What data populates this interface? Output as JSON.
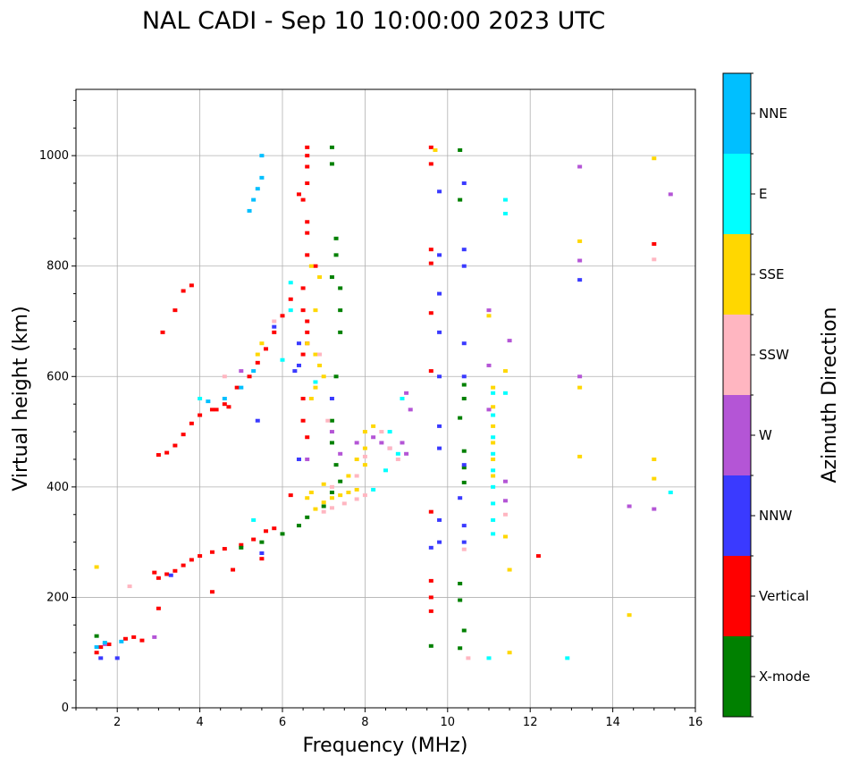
{
  "chart_data": {
    "type": "scatter",
    "title": "NAL CADI - Sep 10 10:00:00 2023 UTC",
    "xlabel": "Frequency (MHz)",
    "ylabel": "Virtual height (km)",
    "xlim": [
      1,
      16
    ],
    "ylim": [
      0,
      1120
    ],
    "xticks": [
      2,
      4,
      6,
      8,
      10,
      12,
      14,
      16
    ],
    "yticks": [
      0,
      200,
      400,
      600,
      800,
      1000
    ],
    "grid": true,
    "colorbar": {
      "title": "Azimuth Direction",
      "position": "right",
      "categories": [
        {
          "name": "X-mode",
          "color": "#008000"
        },
        {
          "name": "Vertical",
          "color": "#ff0000"
        },
        {
          "name": "NNW",
          "color": "#3a3aff"
        },
        {
          "name": "W",
          "color": "#b455d6"
        },
        {
          "name": "SSW",
          "color": "#ffb6c1"
        },
        {
          "name": "SSE",
          "color": "#ffd700"
        },
        {
          "name": "E",
          "color": "#00ffff"
        },
        {
          "name": "NNE",
          "color": "#00bfff"
        }
      ]
    },
    "series": [
      {
        "name": "Vertical",
        "points": [
          [
            1.5,
            100
          ],
          [
            1.6,
            110
          ],
          [
            1.8,
            115
          ],
          [
            2.2,
            125
          ],
          [
            2.4,
            128
          ],
          [
            2.6,
            122
          ],
          [
            2.9,
            245
          ],
          [
            3.0,
            235
          ],
          [
            3.2,
            242
          ],
          [
            3.4,
            248
          ],
          [
            3.6,
            258
          ],
          [
            3.8,
            268
          ],
          [
            4.0,
            275
          ],
          [
            4.3,
            282
          ],
          [
            4.6,
            288
          ],
          [
            5.0,
            295
          ],
          [
            5.3,
            305
          ],
          [
            5.6,
            320
          ],
          [
            5.8,
            325
          ],
          [
            6.2,
            385
          ],
          [
            3.0,
            458
          ],
          [
            3.2,
            462
          ],
          [
            3.4,
            475
          ],
          [
            3.6,
            495
          ],
          [
            3.8,
            515
          ],
          [
            4.0,
            530
          ],
          [
            4.3,
            540
          ],
          [
            4.6,
            550
          ],
          [
            4.9,
            580
          ],
          [
            5.2,
            600
          ],
          [
            5.4,
            625
          ],
          [
            5.6,
            650
          ],
          [
            5.8,
            680
          ],
          [
            6.0,
            710
          ],
          [
            6.2,
            740
          ],
          [
            6.5,
            720
          ],
          [
            6.6,
            700
          ],
          [
            6.6,
            680
          ],
          [
            6.6,
            660
          ],
          [
            6.5,
            640
          ],
          [
            6.6,
            880
          ],
          [
            6.6,
            860
          ],
          [
            6.5,
            920
          ],
          [
            6.6,
            950
          ],
          [
            6.4,
            930
          ],
          [
            6.6,
            980
          ],
          [
            6.6,
            1000
          ],
          [
            6.5,
            760
          ],
          [
            6.6,
            820
          ],
          [
            6.8,
            800
          ],
          [
            3.6,
            755
          ],
          [
            3.8,
            765
          ],
          [
            3.4,
            720
          ],
          [
            3.1,
            680
          ],
          [
            4.4,
            540
          ],
          [
            4.7,
            545
          ],
          [
            5.5,
            270
          ],
          [
            6.5,
            560
          ],
          [
            6.5,
            520
          ],
          [
            6.6,
            490
          ],
          [
            9.6,
            1015
          ],
          [
            9.6,
            985
          ],
          [
            12.2,
            275
          ],
          [
            15.0,
            840
          ],
          [
            3.0,
            180
          ],
          [
            4.3,
            210
          ],
          [
            4.8,
            250
          ],
          [
            6.6,
            1015
          ],
          [
            9.6,
            230
          ],
          [
            9.6,
            200
          ],
          [
            9.6,
            175
          ],
          [
            9.6,
            355
          ],
          [
            9.6,
            610
          ],
          [
            9.6,
            715
          ],
          [
            9.6,
            805
          ],
          [
            9.6,
            830
          ]
        ]
      },
      {
        "name": "X-mode",
        "points": [
          [
            1.5,
            130
          ],
          [
            5.0,
            290
          ],
          [
            5.5,
            300
          ],
          [
            6.0,
            315
          ],
          [
            6.4,
            330
          ],
          [
            6.6,
            345
          ],
          [
            7.0,
            365
          ],
          [
            7.2,
            390
          ],
          [
            7.3,
            850
          ],
          [
            7.3,
            820
          ],
          [
            7.4,
            760
          ],
          [
            7.4,
            720
          ],
          [
            7.4,
            680
          ],
          [
            7.3,
            600
          ],
          [
            7.2,
            520
          ],
          [
            7.2,
            480
          ],
          [
            7.3,
            440
          ],
          [
            7.4,
            410
          ],
          [
            7.2,
            1015
          ],
          [
            7.2,
            985
          ],
          [
            10.3,
            1010
          ],
          [
            10.3,
            920
          ],
          [
            10.4,
            585
          ],
          [
            10.4,
            560
          ],
          [
            10.3,
            525
          ],
          [
            10.4,
            465
          ],
          [
            10.4,
            435
          ],
          [
            10.4,
            408
          ],
          [
            10.3,
            225
          ],
          [
            10.3,
            195
          ],
          [
            10.4,
            140
          ],
          [
            10.3,
            108
          ],
          [
            9.6,
            112
          ],
          [
            7.2,
            780
          ]
        ]
      },
      {
        "name": "SSE",
        "points": [
          [
            6.8,
            360
          ],
          [
            7.0,
            372
          ],
          [
            7.2,
            380
          ],
          [
            7.4,
            385
          ],
          [
            7.6,
            390
          ],
          [
            7.8,
            395
          ],
          [
            6.7,
            390
          ],
          [
            6.6,
            380
          ],
          [
            7.0,
            405
          ],
          [
            7.6,
            420
          ],
          [
            8.0,
            440
          ],
          [
            8.0,
            470
          ],
          [
            8.0,
            500
          ],
          [
            8.2,
            510
          ],
          [
            6.7,
            560
          ],
          [
            6.8,
            580
          ],
          [
            7.0,
            600
          ],
          [
            6.9,
            620
          ],
          [
            6.8,
            640
          ],
          [
            6.6,
            660
          ],
          [
            6.8,
            720
          ],
          [
            6.9,
            780
          ],
          [
            6.7,
            800
          ],
          [
            11.1,
            580
          ],
          [
            11.1,
            545
          ],
          [
            11.1,
            510
          ],
          [
            11.1,
            480
          ],
          [
            11.1,
            450
          ],
          [
            11.1,
            420
          ],
          [
            11.4,
            610
          ],
          [
            13.2,
            580
          ],
          [
            13.2,
            455
          ],
          [
            13.2,
            845
          ],
          [
            15.0,
            450
          ],
          [
            15.0,
            415
          ],
          [
            15.0,
            995
          ],
          [
            14.4,
            168
          ],
          [
            11.4,
            310
          ],
          [
            11.5,
            250
          ],
          [
            11.5,
            100
          ],
          [
            1.5,
            255
          ],
          [
            5.4,
            640
          ],
          [
            5.5,
            660
          ],
          [
            7.8,
            450
          ],
          [
            9.7,
            1010
          ],
          [
            11.0,
            710
          ]
        ]
      },
      {
        "name": "E",
        "points": [
          [
            11.1,
            570
          ],
          [
            11.1,
            530
          ],
          [
            11.1,
            490
          ],
          [
            11.1,
            460
          ],
          [
            11.1,
            430
          ],
          [
            11.1,
            400
          ],
          [
            11.1,
            370
          ],
          [
            11.1,
            340
          ],
          [
            11.1,
            315
          ],
          [
            11.4,
            920
          ],
          [
            11.4,
            895
          ],
          [
            11.4,
            570
          ],
          [
            12.9,
            90
          ],
          [
            11.0,
            90
          ],
          [
            15.4,
            390
          ],
          [
            6.2,
            770
          ],
          [
            6.0,
            630
          ],
          [
            8.2,
            395
          ],
          [
            8.5,
            430
          ],
          [
            8.8,
            460
          ],
          [
            8.9,
            560
          ],
          [
            8.6,
            500
          ],
          [
            4.0,
            560
          ],
          [
            5.3,
            340
          ],
          [
            6.2,
            720
          ],
          [
            6.8,
            590
          ]
        ]
      },
      {
        "name": "W",
        "points": [
          [
            8.2,
            490
          ],
          [
            8.4,
            480
          ],
          [
            8.6,
            470
          ],
          [
            8.9,
            480
          ],
          [
            9.0,
            460
          ],
          [
            9.1,
            540
          ],
          [
            9.0,
            570
          ],
          [
            11.0,
            720
          ],
          [
            11.0,
            620
          ],
          [
            11.0,
            540
          ],
          [
            13.2,
            980
          ],
          [
            13.2,
            810
          ],
          [
            13.2,
            600
          ],
          [
            14.4,
            365
          ],
          [
            15.0,
            360
          ],
          [
            15.4,
            930
          ],
          [
            11.5,
            665
          ],
          [
            11.4,
            375
          ],
          [
            11.4,
            410
          ],
          [
            7.4,
            460
          ],
          [
            7.8,
            480
          ],
          [
            2.9,
            128
          ],
          [
            1.7,
            115
          ],
          [
            5.0,
            610
          ],
          [
            6.6,
            450
          ],
          [
            7.2,
            500
          ]
        ]
      },
      {
        "name": "NNW",
        "points": [
          [
            2.0,
            90
          ],
          [
            1.6,
            90
          ],
          [
            3.3,
            240
          ],
          [
            6.4,
            620
          ],
          [
            6.3,
            610
          ],
          [
            6.4,
            660
          ],
          [
            5.8,
            690
          ],
          [
            10.4,
            950
          ],
          [
            10.4,
            830
          ],
          [
            10.4,
            800
          ],
          [
            10.4,
            660
          ],
          [
            10.4,
            600
          ],
          [
            10.4,
            440
          ],
          [
            10.3,
            380
          ],
          [
            10.4,
            330
          ],
          [
            10.4,
            300
          ],
          [
            9.8,
            935
          ],
          [
            9.8,
            820
          ],
          [
            9.8,
            750
          ],
          [
            9.8,
            680
          ],
          [
            9.8,
            600
          ],
          [
            9.8,
            510
          ],
          [
            9.8,
            470
          ],
          [
            9.8,
            340
          ],
          [
            9.8,
            300
          ],
          [
            9.6,
            290
          ],
          [
            13.2,
            775
          ],
          [
            7.2,
            560
          ],
          [
            6.4,
            450
          ],
          [
            5.4,
            520
          ],
          [
            5.5,
            280
          ]
        ]
      },
      {
        "name": "NNE",
        "points": [
          [
            1.5,
            110
          ],
          [
            1.7,
            118
          ],
          [
            2.1,
            120
          ],
          [
            5.2,
            900
          ],
          [
            5.3,
            920
          ],
          [
            5.4,
            940
          ],
          [
            5.5,
            960
          ],
          [
            5.5,
            1000
          ],
          [
            5.3,
            610
          ],
          [
            5.0,
            580
          ],
          [
            4.6,
            560
          ],
          [
            4.2,
            555
          ]
        ]
      },
      {
        "name": "SSW",
        "points": [
          [
            2.3,
            220
          ],
          [
            7.0,
            355
          ],
          [
            7.2,
            362
          ],
          [
            7.5,
            370
          ],
          [
            7.8,
            378
          ],
          [
            8.0,
            385
          ],
          [
            7.2,
            400
          ],
          [
            7.8,
            420
          ],
          [
            8.0,
            455
          ],
          [
            8.6,
            470
          ],
          [
            8.8,
            450
          ],
          [
            11.4,
            350
          ],
          [
            15.0,
            812
          ],
          [
            10.5,
            90
          ],
          [
            10.4,
            287
          ],
          [
            4.6,
            600
          ],
          [
            5.8,
            700
          ],
          [
            6.9,
            640
          ],
          [
            7.1,
            520
          ],
          [
            8.4,
            500
          ]
        ]
      }
    ]
  }
}
